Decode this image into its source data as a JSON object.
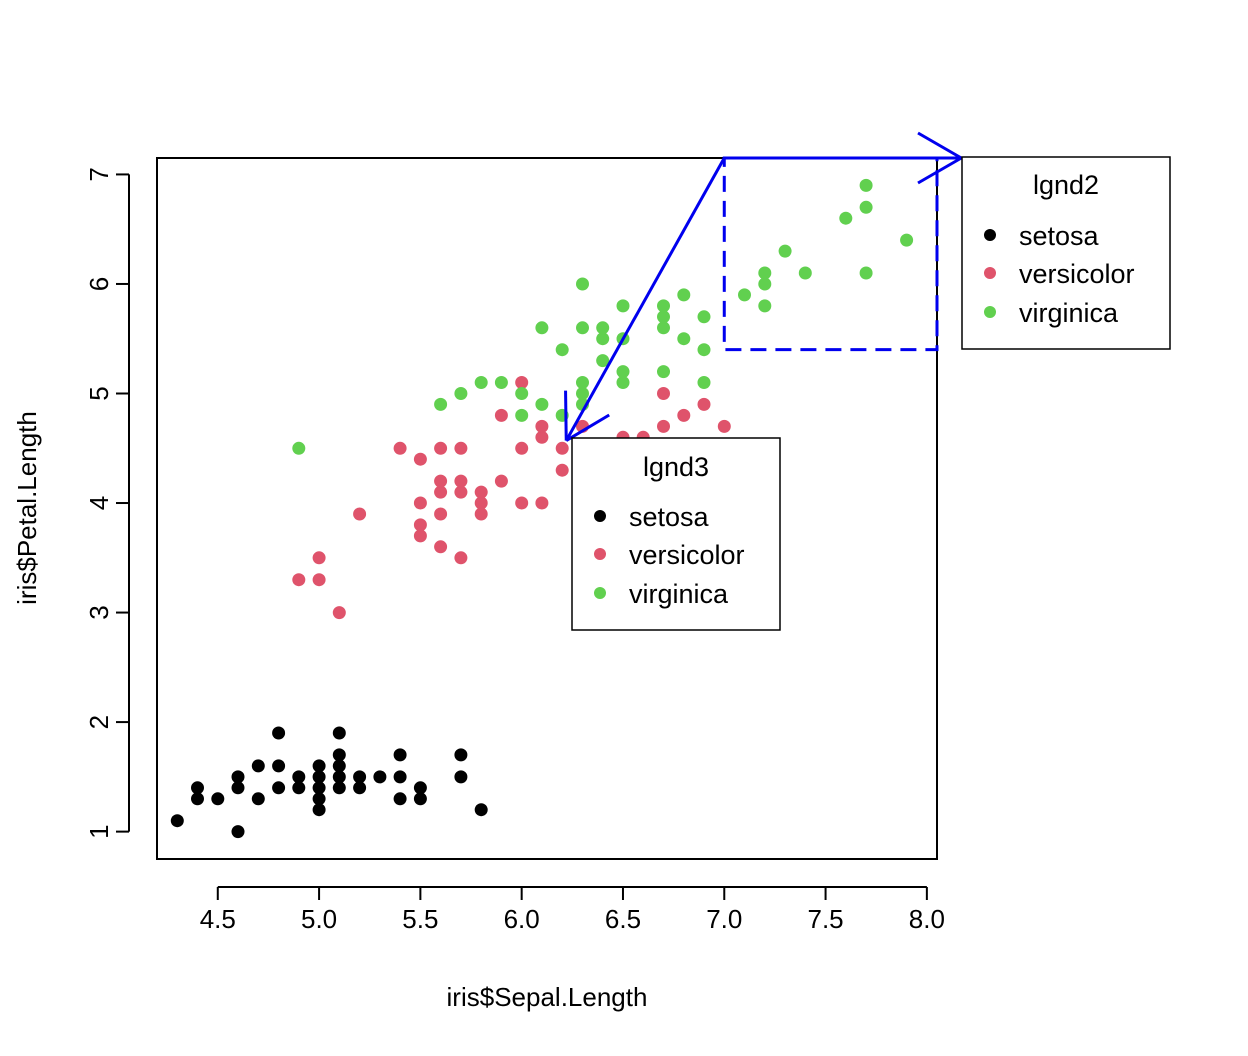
{
  "chart_data": {
    "type": "scatter",
    "xlabel": "iris$Sepal.Length",
    "ylabel": "iris$Petal.Length",
    "xlim": [
      4.2,
      8.05
    ],
    "ylim": [
      0.75,
      7.15
    ],
    "x_ticks": [
      4.5,
      5.0,
      5.5,
      6.0,
      6.5,
      7.0,
      7.5,
      8.0
    ],
    "x_tick_labels": [
      "4.5",
      "5.0",
      "5.5",
      "6.0",
      "6.5",
      "7.0",
      "7.5",
      "8.0"
    ],
    "y_ticks": [
      1,
      2,
      3,
      4,
      5,
      6,
      7
    ],
    "y_tick_labels": [
      "1",
      "2",
      "3",
      "4",
      "5",
      "6",
      "7"
    ],
    "series": [
      {
        "name": "setosa",
        "color": "#000000",
        "points": [
          [
            4.3,
            1.1
          ],
          [
            4.4,
            1.3
          ],
          [
            4.4,
            1.4
          ],
          [
            4.5,
            1.3
          ],
          [
            4.6,
            1.0
          ],
          [
            4.6,
            1.4
          ],
          [
            4.6,
            1.5
          ],
          [
            4.7,
            1.3
          ],
          [
            4.7,
            1.6
          ],
          [
            4.8,
            1.4
          ],
          [
            4.8,
            1.6
          ],
          [
            4.8,
            1.9
          ],
          [
            4.9,
            1.4
          ],
          [
            4.9,
            1.5
          ],
          [
            5.0,
            1.2
          ],
          [
            5.0,
            1.3
          ],
          [
            5.0,
            1.4
          ],
          [
            5.0,
            1.5
          ],
          [
            5.0,
            1.6
          ],
          [
            5.1,
            1.4
          ],
          [
            5.1,
            1.5
          ],
          [
            5.1,
            1.6
          ],
          [
            5.1,
            1.7
          ],
          [
            5.1,
            1.9
          ],
          [
            5.2,
            1.4
          ],
          [
            5.2,
            1.5
          ],
          [
            5.3,
            1.5
          ],
          [
            5.4,
            1.3
          ],
          [
            5.4,
            1.5
          ],
          [
            5.4,
            1.7
          ],
          [
            5.5,
            1.3
          ],
          [
            5.5,
            1.4
          ],
          [
            5.7,
            1.5
          ],
          [
            5.7,
            1.7
          ],
          [
            5.8,
            1.2
          ]
        ]
      },
      {
        "name": "versicolor",
        "color": "#DF536B",
        "points": [
          [
            4.9,
            3.3
          ],
          [
            5.0,
            3.3
          ],
          [
            5.0,
            3.5
          ],
          [
            5.1,
            3.0
          ],
          [
            5.2,
            3.9
          ],
          [
            5.4,
            4.5
          ],
          [
            5.5,
            3.7
          ],
          [
            5.5,
            3.8
          ],
          [
            5.5,
            4.0
          ],
          [
            5.5,
            4.4
          ],
          [
            5.6,
            3.6
          ],
          [
            5.6,
            3.9
          ],
          [
            5.6,
            4.1
          ],
          [
            5.6,
            4.2
          ],
          [
            5.6,
            4.5
          ],
          [
            5.7,
            3.5
          ],
          [
            5.7,
            4.1
          ],
          [
            5.7,
            4.2
          ],
          [
            5.7,
            4.5
          ],
          [
            5.8,
            3.9
          ],
          [
            5.8,
            4.0
          ],
          [
            5.8,
            4.1
          ],
          [
            5.9,
            4.2
          ],
          [
            5.9,
            4.8
          ],
          [
            6.0,
            4.0
          ],
          [
            6.0,
            4.5
          ],
          [
            6.0,
            5.1
          ],
          [
            6.1,
            4.0
          ],
          [
            6.1,
            4.6
          ],
          [
            6.1,
            4.7
          ],
          [
            6.2,
            4.3
          ],
          [
            6.2,
            4.5
          ],
          [
            6.3,
            4.4
          ],
          [
            6.3,
            4.7
          ],
          [
            6.5,
            4.6
          ],
          [
            6.6,
            4.4
          ],
          [
            6.6,
            4.6
          ],
          [
            6.7,
            4.4
          ],
          [
            6.7,
            4.7
          ],
          [
            6.7,
            5.0
          ],
          [
            6.8,
            4.8
          ],
          [
            6.9,
            4.9
          ],
          [
            7.0,
            4.7
          ]
        ]
      },
      {
        "name": "virginica",
        "color": "#61D04F",
        "points": [
          [
            4.9,
            4.5
          ],
          [
            5.6,
            4.9
          ],
          [
            5.7,
            5.0
          ],
          [
            5.8,
            5.1
          ],
          [
            5.9,
            5.1
          ],
          [
            6.0,
            4.8
          ],
          [
            6.0,
            5.0
          ],
          [
            6.1,
            4.9
          ],
          [
            6.1,
            5.6
          ],
          [
            6.2,
            4.8
          ],
          [
            6.2,
            5.4
          ],
          [
            6.3,
            4.9
          ],
          [
            6.3,
            5.0
          ],
          [
            6.3,
            5.1
          ],
          [
            6.3,
            5.6
          ],
          [
            6.3,
            6.0
          ],
          [
            6.4,
            5.3
          ],
          [
            6.4,
            5.5
          ],
          [
            6.4,
            5.6
          ],
          [
            6.5,
            5.1
          ],
          [
            6.5,
            5.2
          ],
          [
            6.5,
            5.5
          ],
          [
            6.5,
            5.8
          ],
          [
            6.7,
            5.2
          ],
          [
            6.7,
            5.6
          ],
          [
            6.7,
            5.7
          ],
          [
            6.7,
            5.8
          ],
          [
            6.8,
            5.5
          ],
          [
            6.8,
            5.9
          ],
          [
            6.9,
            5.1
          ],
          [
            6.9,
            5.4
          ],
          [
            6.9,
            5.7
          ],
          [
            7.1,
            5.9
          ],
          [
            7.2,
            5.8
          ],
          [
            7.2,
            6.0
          ],
          [
            7.2,
            6.1
          ],
          [
            7.3,
            6.3
          ],
          [
            7.4,
            6.1
          ],
          [
            7.6,
            6.6
          ],
          [
            7.7,
            6.1
          ],
          [
            7.7,
            6.7
          ],
          [
            7.7,
            6.9
          ],
          [
            7.9,
            6.4
          ]
        ]
      }
    ],
    "legends": [
      {
        "title": "lgnd2",
        "entries": [
          "setosa",
          "versicolor",
          "virginica"
        ]
      },
      {
        "title": "lgnd3",
        "entries": [
          "setosa",
          "versicolor",
          "virginica"
        ]
      }
    ],
    "annotations": [
      {
        "type": "dashed-rect",
        "color": "#0000EE",
        "x0": 7.0,
        "x1": 8.05,
        "y0": 5.4,
        "y1": 7.15
      },
      {
        "type": "arrow",
        "color": "#0000EE",
        "from": [
          7.0,
          7.15
        ],
        "to": [
          8.17,
          7.15
        ]
      },
      {
        "type": "arrow",
        "color": "#0000EE",
        "from": [
          7.0,
          7.15
        ],
        "to": [
          6.22,
          4.57
        ]
      }
    ]
  }
}
